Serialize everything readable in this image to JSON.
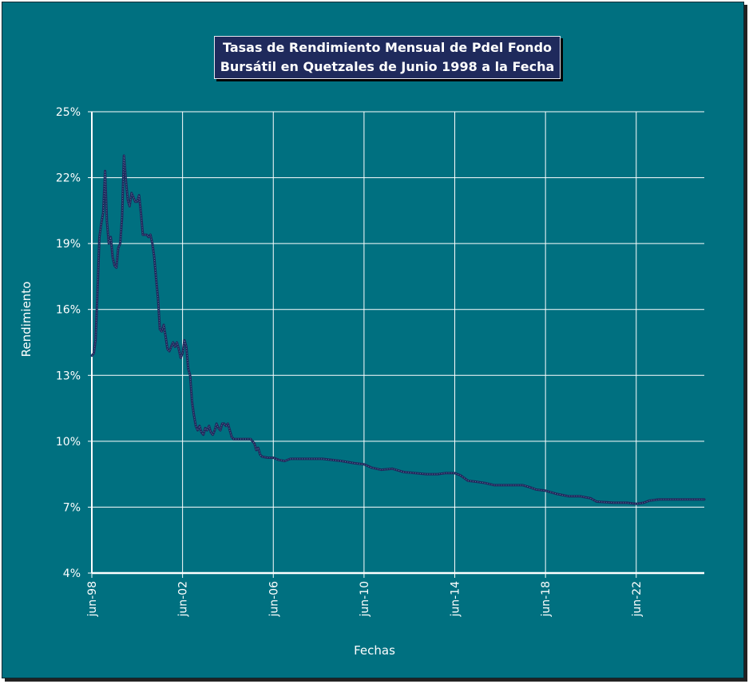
{
  "chart_data": {
    "type": "line",
    "title": [
      "Tasas de Rendimiento Mensual de Pdel Fondo",
      "Bursátil en Quetzales de Junio 1998 a la Fecha"
    ],
    "xlabel": "Fechas",
    "ylabel": "Rendimiento",
    "x_tick_labels": [
      "jun-98",
      "jun-02",
      "jun-06",
      "jun-10",
      "jun-14",
      "jun-18",
      "jun-22"
    ],
    "y_tick_labels": [
      "4%",
      "7%",
      "10%",
      "13%",
      "16%",
      "19%",
      "22%",
      "25%"
    ],
    "ylim": [
      4,
      25
    ],
    "xlim": [
      "1998-06",
      "2025-06"
    ],
    "grid": true,
    "colors": {
      "background": "#007080",
      "line": "#1f2a5c",
      "grid": "#ffffff",
      "title_bg": "#1f2a5c"
    },
    "series": [
      {
        "values": [
          [
            "1998-06",
            13.9
          ],
          [
            "1998-07",
            14.0
          ],
          [
            "1998-08",
            14.6
          ],
          [
            "1998-09",
            16.8
          ],
          [
            "1998-10",
            19.3
          ],
          [
            "1998-11",
            19.9
          ],
          [
            "1998-12",
            20.4
          ],
          [
            "1999-01",
            22.3
          ],
          [
            "1999-02",
            20.0
          ],
          [
            "1999-03",
            19.0
          ],
          [
            "1999-04",
            19.3
          ],
          [
            "1999-05",
            18.4
          ],
          [
            "1999-06",
            18.0
          ],
          [
            "1999-07",
            17.9
          ],
          [
            "1999-08",
            18.8
          ],
          [
            "1999-09",
            19.0
          ],
          [
            "1999-10",
            20.2
          ],
          [
            "1999-11",
            23.0
          ],
          [
            "1999-12",
            21.9
          ],
          [
            "2000-01",
            21.0
          ],
          [
            "2000-02",
            20.7
          ],
          [
            "2000-03",
            21.3
          ],
          [
            "2000-04",
            21.1
          ],
          [
            "2000-05",
            20.9
          ],
          [
            "2000-06",
            20.9
          ],
          [
            "2000-07",
            21.2
          ],
          [
            "2000-08",
            20.4
          ],
          [
            "2000-09",
            19.4
          ],
          [
            "2000-10",
            19.4
          ],
          [
            "2000-11",
            19.4
          ],
          [
            "2000-12",
            19.3
          ],
          [
            "2001-01",
            19.4
          ],
          [
            "2001-02",
            19.0
          ],
          [
            "2001-03",
            18.4
          ],
          [
            "2001-04",
            17.4
          ],
          [
            "2001-05",
            16.5
          ],
          [
            "2001-06",
            15.1
          ],
          [
            "2001-07",
            15.0
          ],
          [
            "2001-08",
            15.3
          ],
          [
            "2001-09",
            14.8
          ],
          [
            "2001-10",
            14.2
          ],
          [
            "2001-11",
            14.1
          ],
          [
            "2001-12",
            14.3
          ],
          [
            "2002-01",
            14.5
          ],
          [
            "2002-02",
            14.3
          ],
          [
            "2002-03",
            14.5
          ],
          [
            "2002-04",
            14.2
          ],
          [
            "2002-05",
            13.8
          ],
          [
            "2002-06",
            14.0
          ],
          [
            "2002-07",
            14.6
          ],
          [
            "2002-08",
            14.3
          ],
          [
            "2002-09",
            13.3
          ],
          [
            "2002-10",
            13.0
          ],
          [
            "2002-11",
            11.8
          ],
          [
            "2002-12",
            11.2
          ],
          [
            "2003-01",
            10.7
          ],
          [
            "2003-02",
            10.5
          ],
          [
            "2003-03",
            10.7
          ],
          [
            "2003-04",
            10.4
          ],
          [
            "2003-05",
            10.3
          ],
          [
            "2003-06",
            10.6
          ],
          [
            "2003-07",
            10.5
          ],
          [
            "2003-08",
            10.7
          ],
          [
            "2003-09",
            10.4
          ],
          [
            "2003-10",
            10.3
          ],
          [
            "2003-11",
            10.5
          ],
          [
            "2003-12",
            10.8
          ],
          [
            "2004-01",
            10.6
          ],
          [
            "2004-02",
            10.5
          ],
          [
            "2004-03",
            10.8
          ],
          [
            "2004-04",
            10.8
          ],
          [
            "2004-05",
            10.7
          ],
          [
            "2004-06",
            10.8
          ],
          [
            "2004-07",
            10.5
          ],
          [
            "2004-08",
            10.2
          ],
          [
            "2004-09",
            10.1
          ],
          [
            "2004-12",
            10.1
          ],
          [
            "2005-06",
            10.1
          ],
          [
            "2005-08",
            9.9
          ],
          [
            "2005-09",
            9.6
          ],
          [
            "2005-10",
            9.7
          ],
          [
            "2005-11",
            9.4
          ],
          [
            "2005-12",
            9.3
          ],
          [
            "2006-03",
            9.25
          ],
          [
            "2006-06",
            9.25
          ],
          [
            "2006-09",
            9.15
          ],
          [
            "2006-12",
            9.1
          ],
          [
            "2007-03",
            9.2
          ],
          [
            "2007-06",
            9.2
          ],
          [
            "2008-01",
            9.2
          ],
          [
            "2008-08",
            9.2
          ],
          [
            "2009-01",
            9.15
          ],
          [
            "2009-06",
            9.1
          ],
          [
            "2010-01",
            9.0
          ],
          [
            "2010-06",
            8.95
          ],
          [
            "2010-10",
            8.8
          ],
          [
            "2011-03",
            8.7
          ],
          [
            "2011-09",
            8.75
          ],
          [
            "2012-03",
            8.6
          ],
          [
            "2012-09",
            8.55
          ],
          [
            "2013-03",
            8.5
          ],
          [
            "2013-09",
            8.5
          ],
          [
            "2014-01",
            8.55
          ],
          [
            "2014-06",
            8.55
          ],
          [
            "2014-09",
            8.45
          ],
          [
            "2015-01",
            8.2
          ],
          [
            "2015-06",
            8.15
          ],
          [
            "2015-10",
            8.1
          ],
          [
            "2016-03",
            8.0
          ],
          [
            "2016-09",
            8.0
          ],
          [
            "2017-06",
            8.0
          ],
          [
            "2017-10",
            7.9
          ],
          [
            "2018-01",
            7.8
          ],
          [
            "2018-06",
            7.75
          ],
          [
            "2018-12",
            7.6
          ],
          [
            "2019-06",
            7.5
          ],
          [
            "2019-12",
            7.5
          ],
          [
            "2020-06",
            7.4
          ],
          [
            "2020-09",
            7.25
          ],
          [
            "2021-06",
            7.2
          ],
          [
            "2022-01",
            7.2
          ],
          [
            "2022-06",
            7.15
          ],
          [
            "2022-10",
            7.2
          ],
          [
            "2023-01",
            7.3
          ],
          [
            "2023-06",
            7.35
          ],
          [
            "2024-06",
            7.35
          ],
          [
            "2025-06",
            7.35
          ]
        ]
      }
    ]
  }
}
